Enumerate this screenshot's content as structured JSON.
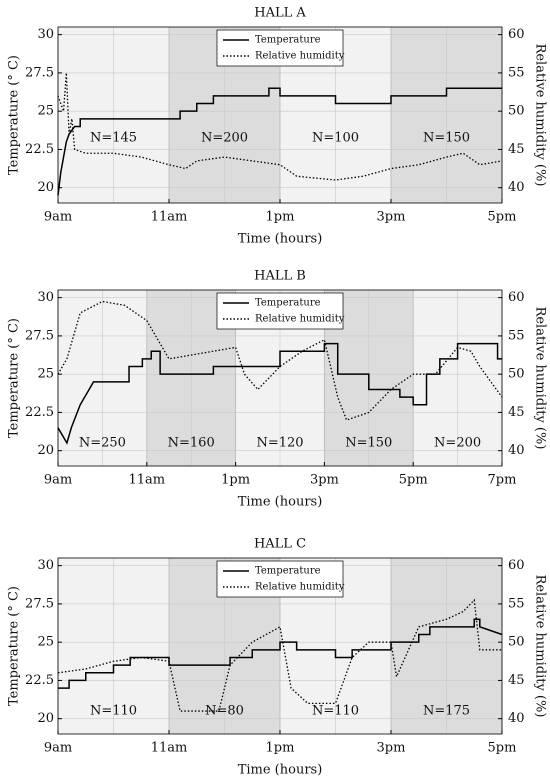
{
  "chart_data": [
    {
      "type": "line",
      "title": "HALL A",
      "x_label": "Time (hours)",
      "y_label": "Temperature (° C)",
      "y2_label": "Relative humidity (%)",
      "xlim": [
        9,
        17
      ],
      "xticks": [
        {
          "value": 9,
          "label": "9am"
        },
        {
          "value": 11,
          "label": "11am"
        },
        {
          "value": 13,
          "label": "1pm"
        },
        {
          "value": 15,
          "label": "3pm"
        },
        {
          "value": 17,
          "label": "5pm"
        }
      ],
      "x_minor_ticks": [
        10,
        12,
        14,
        16
      ],
      "ylim": [
        19,
        30.5
      ],
      "yticks": [
        20,
        22.5,
        25,
        27.5,
        30
      ],
      "y2lim": [
        38,
        61
      ],
      "y2ticks": [
        40,
        45,
        50,
        55,
        60
      ],
      "grid": true,
      "legend": "top-center",
      "regions": [
        {
          "start": 9,
          "end": 11,
          "label": "N=145",
          "color": "#f2f2f2"
        },
        {
          "start": 11,
          "end": 13,
          "label": "N=200",
          "color": "#dcdcdc"
        },
        {
          "start": 13,
          "end": 15,
          "label": "N=100",
          "color": "#f2f2f2"
        },
        {
          "start": 15,
          "end": 17,
          "label": "N=150",
          "color": "#dcdcdc"
        }
      ],
      "series": [
        {
          "name": "Temperature",
          "color": "#000000",
          "dash": "solid",
          "axis": "y",
          "x": [
            9,
            9.05,
            9.1,
            9.15,
            9.2,
            9.3,
            9.4,
            9.4,
            11.2,
            11.2,
            11.5,
            11.5,
            11.8,
            11.8,
            12.8,
            12.8,
            13,
            13,
            14,
            14,
            15,
            15,
            16,
            16,
            17
          ],
          "values": [
            19.5,
            21,
            22,
            23,
            23.5,
            24,
            24,
            24.5,
            24.5,
            25,
            25,
            25.5,
            25.5,
            26,
            26,
            26.5,
            26.5,
            26,
            26,
            25.5,
            25.5,
            26,
            26,
            26.5,
            26.5
          ]
        },
        {
          "name": "Relative humidity",
          "color": "#000000",
          "dash": "dotted",
          "axis": "y2",
          "x": [
            9,
            9.1,
            9.15,
            9.2,
            9.25,
            9.3,
            9.5,
            10,
            10.5,
            11,
            11.3,
            11.5,
            12,
            12.5,
            13,
            13.3,
            14,
            14.5,
            15,
            15.5,
            16,
            16.3,
            16.6,
            17
          ],
          "values": [
            52,
            50,
            55,
            47,
            49,
            45,
            44.5,
            44.5,
            44,
            43,
            42.5,
            43.5,
            44,
            43.5,
            43,
            41.5,
            41,
            41.5,
            42.5,
            43,
            44,
            44.5,
            43,
            43.5
          ]
        }
      ]
    },
    {
      "type": "line",
      "title": "HALL B",
      "x_label": "Time (hours)",
      "y_label": "Temperature (° C)",
      "y2_label": "Relative humidity (%)",
      "xlim": [
        9,
        19
      ],
      "xticks": [
        {
          "value": 9,
          "label": "9am"
        },
        {
          "value": 11,
          "label": "11am"
        },
        {
          "value": 13,
          "label": "1pm"
        },
        {
          "value": 15,
          "label": "3pm"
        },
        {
          "value": 17,
          "label": "5pm"
        },
        {
          "value": 19,
          "label": "7pm"
        }
      ],
      "x_minor_ticks": [
        10,
        12,
        14,
        16,
        18
      ],
      "ylim": [
        19,
        30.5
      ],
      "yticks": [
        20,
        22.5,
        25,
        27.5,
        30
      ],
      "y2lim": [
        38,
        61
      ],
      "y2ticks": [
        40,
        45,
        50,
        55,
        60
      ],
      "grid": true,
      "legend": "top-center",
      "regions": [
        {
          "start": 9,
          "end": 11,
          "label": "N=250",
          "color": "#f2f2f2"
        },
        {
          "start": 11,
          "end": 13,
          "label": "N=160",
          "color": "#dcdcdc"
        },
        {
          "start": 13,
          "end": 15,
          "label": "N=120",
          "color": "#f2f2f2"
        },
        {
          "start": 15,
          "end": 17,
          "label": "N=150",
          "color": "#dcdcdc"
        },
        {
          "start": 17,
          "end": 19,
          "label": "N=200",
          "color": "#f2f2f2"
        }
      ],
      "series": [
        {
          "name": "Temperature",
          "color": "#000000",
          "dash": "solid",
          "axis": "y",
          "x": [
            9,
            9.1,
            9.2,
            9.3,
            9.5,
            9.8,
            10.6,
            10.6,
            10.9,
            10.9,
            11.1,
            11.1,
            11.3,
            11.3,
            12.5,
            12.5,
            14,
            14,
            15,
            15,
            15.3,
            15.3,
            16,
            16,
            16.7,
            16.7,
            17,
            17,
            17.3,
            17.3,
            17.6,
            17.6,
            18,
            18,
            18.9,
            18.9,
            19
          ],
          "values": [
            21.5,
            21,
            20.5,
            21.5,
            23,
            24.5,
            24.5,
            25.5,
            25.5,
            26,
            26,
            26.5,
            26.5,
            25,
            25,
            25.5,
            25.5,
            26.5,
            26.5,
            27,
            27,
            25,
            25,
            24,
            24,
            23.5,
            23.5,
            23,
            23,
            25,
            25,
            26,
            26,
            27,
            27,
            26,
            26
          ]
        },
        {
          "name": "Relative humidity",
          "color": "#000000",
          "dash": "dotted",
          "axis": "y2",
          "x": [
            9,
            9.2,
            9.5,
            10,
            10.5,
            11,
            11.2,
            11.5,
            12,
            12.5,
            13,
            13.2,
            13.5,
            14,
            14.5,
            15,
            15.3,
            15.5,
            16,
            16.5,
            17,
            17.5,
            18,
            18.3,
            18.5,
            19
          ],
          "values": [
            50,
            52,
            58,
            59.5,
            59,
            57,
            55,
            52,
            52.5,
            53,
            53.5,
            50,
            48,
            51,
            53,
            54.5,
            47,
            44,
            45,
            48,
            50,
            50,
            53.5,
            53,
            51,
            47
          ]
        }
      ]
    },
    {
      "type": "line",
      "title": "HALL C",
      "x_label": "Time (hours)",
      "y_label": "Temperature (° C)",
      "y2_label": "Relative humidity (%)",
      "xlim": [
        9,
        17
      ],
      "xticks": [
        {
          "value": 9,
          "label": "9am"
        },
        {
          "value": 11,
          "label": "11am"
        },
        {
          "value": 13,
          "label": "1pm"
        },
        {
          "value": 15,
          "label": "3pm"
        },
        {
          "value": 17,
          "label": "5pm"
        }
      ],
      "x_minor_ticks": [
        10,
        12,
        14,
        16
      ],
      "ylim": [
        19,
        30.5
      ],
      "yticks": [
        20,
        22.5,
        25,
        27.5,
        30
      ],
      "y2lim": [
        38,
        61
      ],
      "y2ticks": [
        40,
        45,
        50,
        55,
        60
      ],
      "grid": true,
      "legend": "top-center",
      "regions": [
        {
          "start": 9,
          "end": 11,
          "label": "N=110",
          "color": "#f2f2f2"
        },
        {
          "start": 11,
          "end": 13,
          "label": "N=80",
          "color": "#dcdcdc"
        },
        {
          "start": 13,
          "end": 15,
          "label": "N=110",
          "color": "#f2f2f2"
        },
        {
          "start": 15,
          "end": 17,
          "label": "N=175",
          "color": "#dcdcdc"
        }
      ],
      "series": [
        {
          "name": "Temperature",
          "color": "#000000",
          "dash": "solid",
          "axis": "y",
          "x": [
            9,
            9.2,
            9.2,
            9.5,
            9.5,
            10,
            10,
            10.3,
            10.3,
            11,
            11,
            12.1,
            12.1,
            12.5,
            12.5,
            13,
            13,
            13.3,
            13.3,
            14,
            14,
            14.3,
            14.3,
            15,
            15,
            15.5,
            15.5,
            15.7,
            15.7,
            16.5,
            16.5,
            16.6,
            16.6,
            17
          ],
          "values": [
            22,
            22,
            22.5,
            22.5,
            23,
            23,
            23.5,
            23.5,
            24,
            24,
            23.5,
            23.5,
            24,
            24,
            24.5,
            24.5,
            25,
            25,
            24.5,
            24.5,
            24,
            24,
            24.5,
            24.5,
            25,
            25,
            25.5,
            25.5,
            26,
            26,
            26.5,
            26.5,
            26,
            25.5
          ]
        },
        {
          "name": "Relative humidity",
          "color": "#000000",
          "dash": "dotted",
          "axis": "y2",
          "x": [
            9,
            9.5,
            10,
            10.5,
            11,
            11.2,
            11.9,
            12.1,
            12.5,
            13,
            13.2,
            13.5,
            14,
            14.3,
            14.6,
            15,
            15.1,
            15.5,
            16,
            16.3,
            16.5,
            16.6,
            17
          ],
          "values": [
            46,
            46.5,
            47.5,
            48,
            47.5,
            41,
            41,
            47,
            50,
            52,
            44,
            42,
            42,
            48,
            50,
            50,
            45.5,
            52,
            53,
            54,
            55.5,
            49,
            49
          ]
        }
      ]
    }
  ]
}
